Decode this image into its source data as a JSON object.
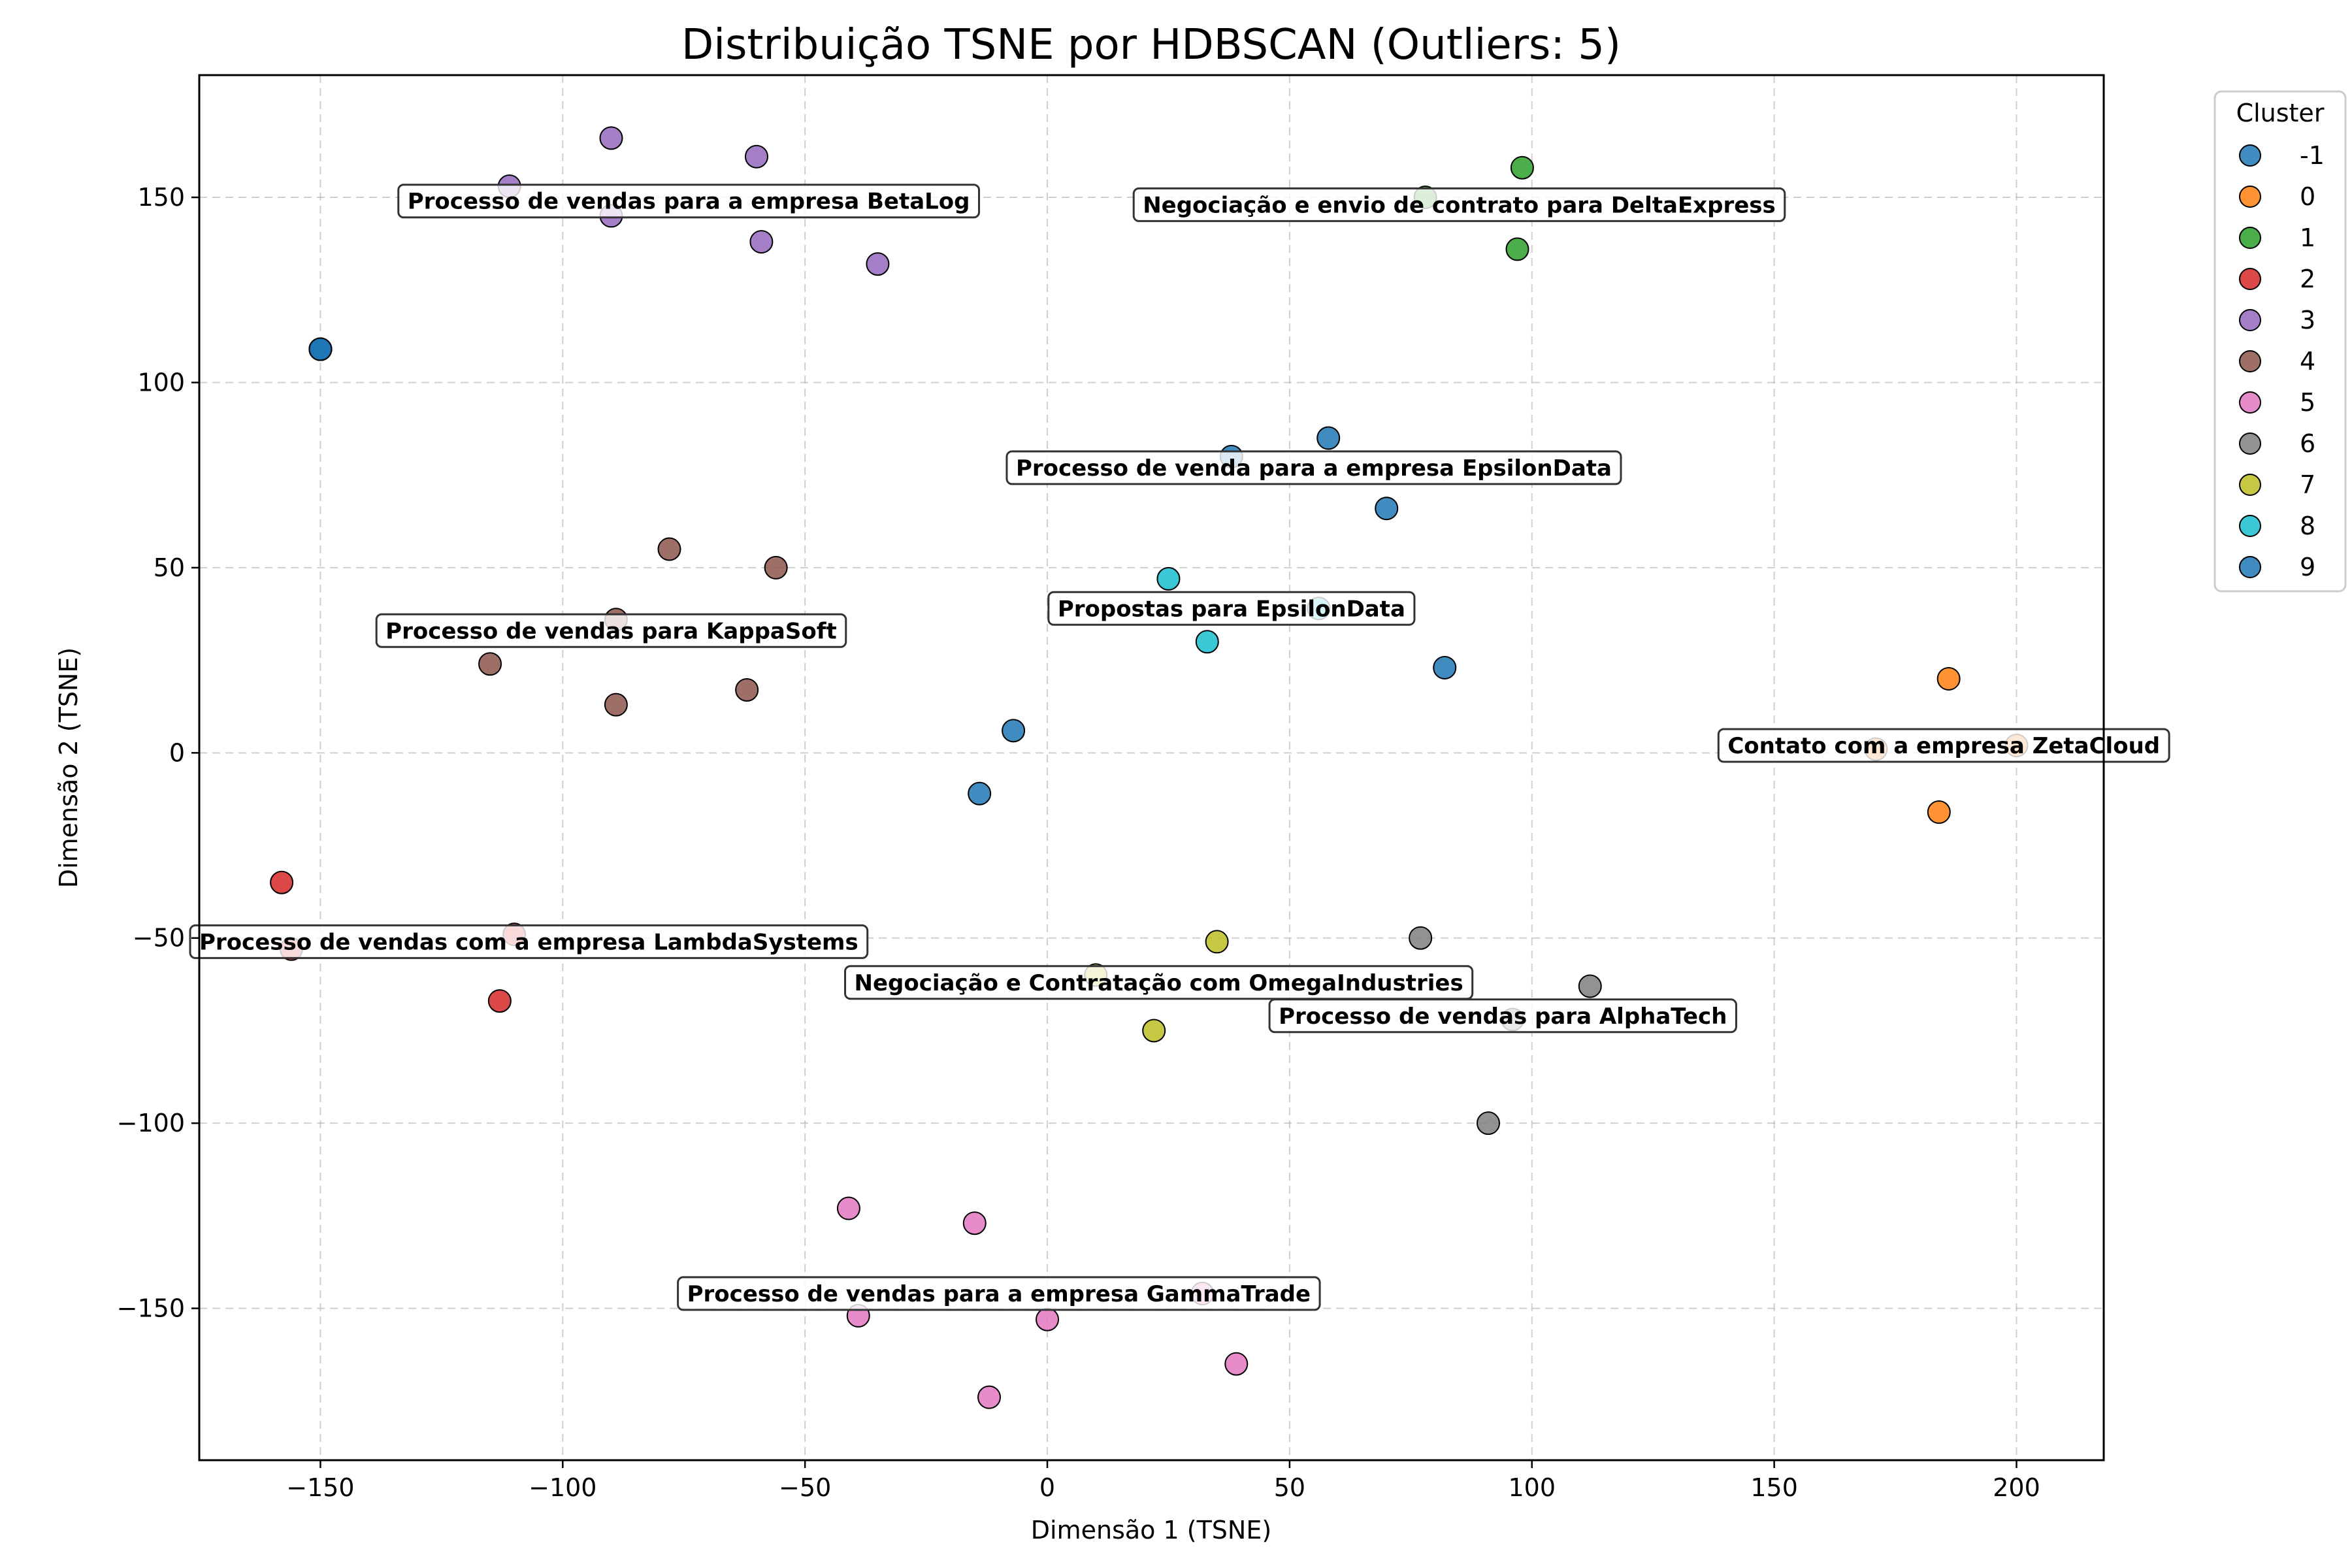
{
  "chart_data": {
    "type": "scatter",
    "title": "Distribuição TSNE por HDBSCAN (Outliers: 5)",
    "xlabel": "Dimensão 1 (TSNE)",
    "ylabel": "Dimensão 2 (TSNE)",
    "xlim": [
      -175,
      218
    ],
    "ylim": [
      -191,
      183
    ],
    "xticks": [
      -150,
      -100,
      -50,
      0,
      50,
      100,
      150,
      200
    ],
    "yticks": [
      -150,
      -100,
      -50,
      0,
      50,
      100,
      150
    ],
    "grid": true,
    "legend": {
      "title": "Cluster",
      "placement": "outside-top-right"
    },
    "series": [
      {
        "name": "-1",
        "color": "#1f77b4",
        "points": [
          [
            -150,
            109
          ],
          [
            -150,
            109
          ],
          [
            -150,
            109
          ],
          [
            -150,
            109
          ],
          [
            -150,
            109
          ]
        ]
      },
      {
        "name": "0",
        "color": "#ff7f0e",
        "points": [
          [
            186,
            20
          ],
          [
            184,
            -16
          ],
          [
            171,
            1
          ],
          [
            200,
            2
          ]
        ]
      },
      {
        "name": "1",
        "color": "#2ca02c",
        "points": [
          [
            98,
            158
          ],
          [
            97,
            136
          ],
          [
            78,
            150
          ]
        ]
      },
      {
        "name": "2",
        "color": "#d62728",
        "points": [
          [
            -158,
            -35
          ],
          [
            -113,
            -67
          ],
          [
            -110,
            -49
          ],
          [
            -156,
            -53
          ]
        ]
      },
      {
        "name": "3",
        "color": "#9467bd",
        "points": [
          [
            -90,
            166
          ],
          [
            -60,
            161
          ],
          [
            -111,
            153
          ],
          [
            -90,
            145
          ],
          [
            -59,
            138
          ],
          [
            -35,
            132
          ]
        ]
      },
      {
        "name": "4",
        "color": "#8c564b",
        "points": [
          [
            -78,
            55
          ],
          [
            -56,
            50
          ],
          [
            -89,
            36
          ],
          [
            -115,
            24
          ],
          [
            -62,
            17
          ],
          [
            -89,
            13
          ]
        ]
      },
      {
        "name": "5",
        "color": "#e377c2",
        "points": [
          [
            -41,
            -123
          ],
          [
            -15,
            -127
          ],
          [
            -39,
            -152
          ],
          [
            0,
            -153
          ],
          [
            32,
            -146
          ],
          [
            39,
            -165
          ],
          [
            -12,
            -174
          ]
        ]
      },
      {
        "name": "6",
        "color": "#7f7f7f",
        "points": [
          [
            77,
            -50
          ],
          [
            112,
            -63
          ],
          [
            96,
            -72
          ],
          [
            91,
            -100
          ]
        ]
      },
      {
        "name": "7",
        "color": "#bcbd22",
        "points": [
          [
            35,
            -51
          ],
          [
            22,
            -75
          ],
          [
            10,
            -60
          ]
        ]
      },
      {
        "name": "8",
        "color": "#17becf",
        "points": [
          [
            25,
            47
          ],
          [
            33,
            30
          ],
          [
            56,
            39
          ]
        ]
      },
      {
        "name": "9",
        "color": "#1f77b4",
        "points": [
          [
            58,
            85
          ],
          [
            38,
            80
          ],
          [
            70,
            66
          ],
          [
            82,
            23
          ],
          [
            -7,
            6
          ],
          [
            -14,
            -11
          ]
        ]
      }
    ],
    "annotations": [
      {
        "text": "Processo de vendas para a empresa BetaLog",
        "x": -74,
        "y": 149
      },
      {
        "text": "Negociação e envio de contrato para DeltaExpress",
        "x": 85,
        "y": 148
      },
      {
        "text": "Processo de venda para a empresa EpsilonData",
        "x": 55,
        "y": 77
      },
      {
        "text": "Processo de vendas para KappaSoft",
        "x": -90,
        "y": 33
      },
      {
        "text": "Propostas para EpsilonData",
        "x": 38,
        "y": 39
      },
      {
        "text": "Contato com a empresa ZetaCloud",
        "x": 185,
        "y": 2
      },
      {
        "text": "Processo de vendas com a empresa LambdaSystems",
        "x": -107,
        "y": -51
      },
      {
        "text": "Negociação e Contratação com OmegaIndustries",
        "x": 23,
        "y": -62
      },
      {
        "text": "Processo de vendas para AlphaTech",
        "x": 94,
        "y": -71
      },
      {
        "text": "Processo de vendas para a empresa GammaTrade",
        "x": -10,
        "y": -146
      }
    ]
  }
}
